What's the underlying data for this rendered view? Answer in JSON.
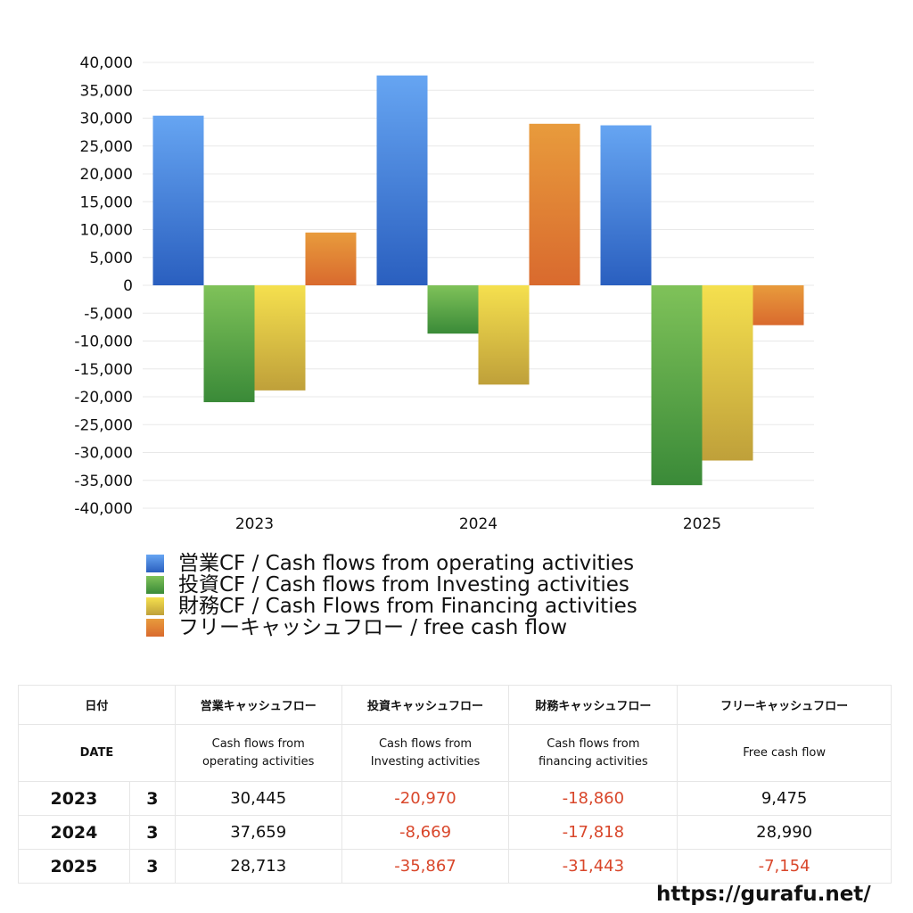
{
  "chart_data": {
    "type": "bar",
    "categories": [
      "2023",
      "2024",
      "2025"
    ],
    "series": [
      {
        "name": "営業CF / Cash flows from operating activities",
        "values": [
          30445,
          37659,
          28713
        ],
        "color_top": "#66a5f2",
        "color_bottom": "#2a5fbf"
      },
      {
        "name": "投資CF / Cash flows from Investing activities",
        "values": [
          -20970,
          -8669,
          -35867
        ],
        "color_top": "#7fc259",
        "color_bottom": "#3a8a38"
      },
      {
        "name": "財務CF / Cash Flows from Financing activities",
        "values": [
          -18860,
          -17818,
          -31443
        ],
        "color_top": "#f5e04e",
        "color_bottom": "#bfa03a"
      },
      {
        "name": "フリーキャッシュフロー / free cash flow",
        "values": [
          9475,
          28990,
          -7154
        ],
        "color_top": "#e89b3c",
        "color_bottom": "#d96a2e"
      }
    ],
    "ylim": [
      -40000,
      40000
    ],
    "yticks": [
      "40,000",
      "35,000",
      "30,000",
      "25,000",
      "20,000",
      "15,000",
      "10,000",
      "5,000",
      "0",
      "-5,000",
      "-10,000",
      "-15,000",
      "-20,000",
      "-25,000",
      "-30,000",
      "-35,000",
      "-40,000"
    ],
    "ytick_values": [
      40000,
      35000,
      30000,
      25000,
      20000,
      15000,
      10000,
      5000,
      0,
      -5000,
      -10000,
      -15000,
      -20000,
      -25000,
      -30000,
      -35000,
      -40000
    ],
    "grid": true,
    "legend_position": "bottom-left"
  },
  "table": {
    "header_jp": [
      "日付",
      "営業キャッシュフロー",
      "投資キャッシュフロー",
      "財務キャッシュフロー",
      "フリーキャッシュフロー"
    ],
    "header_en_date": "DATE",
    "header_en": [
      [
        "Cash flows from",
        "operating activities"
      ],
      [
        "Cash flows from",
        "Investing activities"
      ],
      [
        "Cash flows from",
        "financing activities"
      ],
      [
        "Free cash flow"
      ]
    ],
    "rows": [
      {
        "year": "2023",
        "month": "3",
        "values": [
          "30,445",
          "-20,970",
          "-18,860",
          "9,475"
        ]
      },
      {
        "year": "2024",
        "month": "3",
        "values": [
          "37,659",
          "-8,669",
          "-17,818",
          "28,990"
        ]
      },
      {
        "year": "2025",
        "month": "3",
        "values": [
          "28,713",
          "-35,867",
          "-31,443",
          "-7,154"
        ]
      }
    ]
  },
  "site_url": "https://gurafu.net/"
}
